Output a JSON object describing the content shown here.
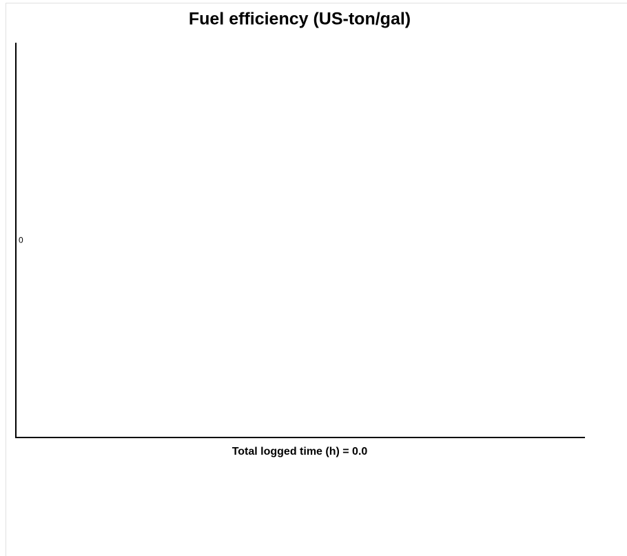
{
  "chart_data": {
    "type": "bar",
    "title": "Fuel efficiency (US-ton/gal)",
    "xlabel": "Total logged time (h) = 0.0",
    "categories": [],
    "values": [],
    "color": "#4472c4",
    "ylim": [
      -1,
      1
    ],
    "yticks": [
      0
    ],
    "grid": false
  }
}
